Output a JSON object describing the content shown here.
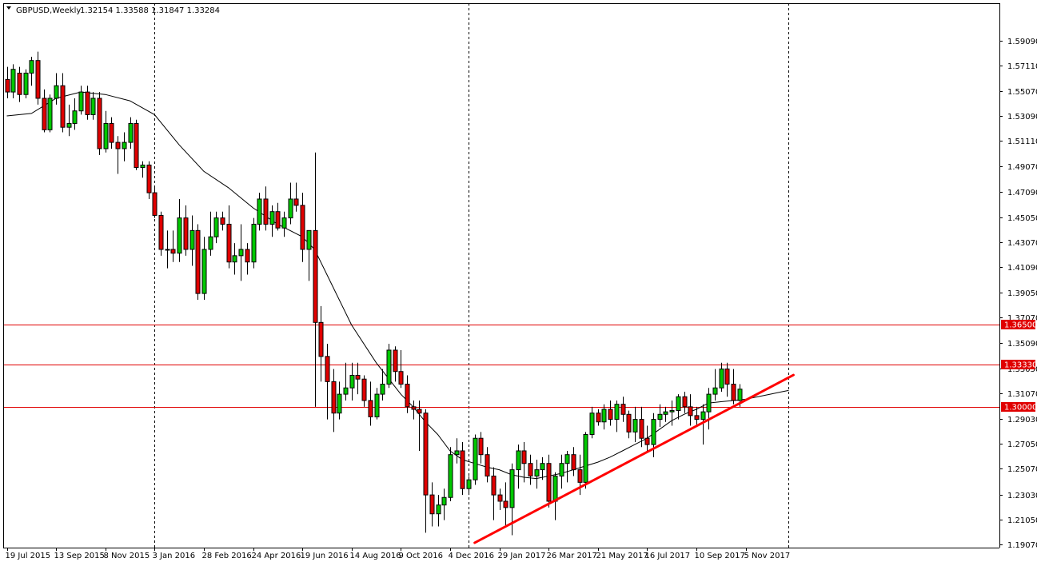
{
  "window": {
    "symbol_label": "GBPUSD,Weekly",
    "ohlc_label": "1.32154 1.33588 1.31847 1.33284"
  },
  "colors": {
    "bull": "#00c800",
    "bear": "#e00000",
    "wick": "#000000",
    "hline": "#e00000",
    "ma": "#000000",
    "trend": "#ff0000",
    "price_label_bg": "#e00000",
    "price_label_text": "#ffffff"
  },
  "chart_data": {
    "type": "candlestick",
    "title": "",
    "ylim": [
      1.1907,
      1.6091
    ],
    "y_ticks": [
      "1.59090",
      "1.57110",
      "1.55070",
      "1.53090",
      "1.51110",
      "1.49070",
      "1.47090",
      "1.45050",
      "1.43070",
      "1.41090",
      "1.39050",
      "1.37070",
      "1.35090",
      "1.33050",
      "1.31070",
      "1.29030",
      "1.27050",
      "1.25070",
      "1.23030",
      "1.21050",
      "1.19070"
    ],
    "x_ticks": [
      {
        "label": "19 Jul 2015",
        "index": 0
      },
      {
        "label": "13 Sep 2015",
        "index": 8
      },
      {
        "label": "8 Nov 2015",
        "index": 16
      },
      {
        "label": "3 Jan 2016",
        "index": 24
      },
      {
        "label": "28 Feb 2016",
        "index": 32
      },
      {
        "label": "24 Apr 2016",
        "index": 40
      },
      {
        "label": "19 Jun 2016",
        "index": 48
      },
      {
        "label": "14 Aug 2016",
        "index": 56
      },
      {
        "label": "9 Oct 2016",
        "index": 64
      },
      {
        "label": "4 Dec 2016",
        "index": 72
      },
      {
        "label": "29 Jan 2017",
        "index": 80
      },
      {
        "label": "26 Mar 2017",
        "index": 88
      },
      {
        "label": "21 May 2017",
        "index": 96
      },
      {
        "label": "16 Jul 2017",
        "index": 104
      },
      {
        "label": "10 Sep 2017",
        "index": 112
      },
      {
        "label": "5 Nov 2017",
        "index": 120
      }
    ],
    "period_separators": [
      24,
      75,
      127
    ],
    "horizontal_levels": [
      {
        "label": "1.36500",
        "value": 1.365
      },
      {
        "label": "1.33330",
        "value": 1.3333
      },
      {
        "label": "1.30000",
        "value": 1.3
      }
    ],
    "trendline": {
      "start": {
        "index": 76,
        "value": 1.192
      },
      "end": {
        "index": 127,
        "value": 1.324
      }
    },
    "candles": [
      [
        1.56,
        1.57,
        1.545,
        1.55
      ],
      [
        1.55,
        1.572,
        1.545,
        1.568
      ],
      [
        1.565,
        1.57,
        1.542,
        1.548
      ],
      [
        1.548,
        1.568,
        1.545,
        1.565
      ],
      [
        1.565,
        1.578,
        1.555,
        1.575
      ],
      [
        1.575,
        1.582,
        1.54,
        1.545
      ],
      [
        1.545,
        1.552,
        1.518,
        1.52
      ],
      [
        1.52,
        1.548,
        1.518,
        1.545
      ],
      [
        1.545,
        1.565,
        1.54,
        1.555
      ],
      [
        1.555,
        1.565,
        1.518,
        1.522
      ],
      [
        1.522,
        1.54,
        1.515,
        1.525
      ],
      [
        1.525,
        1.545,
        1.52,
        1.535
      ],
      [
        1.535,
        1.555,
        1.532,
        1.55
      ],
      [
        1.55,
        1.555,
        1.528,
        1.532
      ],
      [
        1.532,
        1.55,
        1.528,
        1.545
      ],
      [
        1.545,
        1.55,
        1.5,
        1.505
      ],
      [
        1.505,
        1.535,
        1.502,
        1.525
      ],
      [
        1.525,
        1.53,
        1.505,
        1.51
      ],
      [
        1.51,
        1.515,
        1.485,
        1.505
      ],
      [
        1.505,
        1.518,
        1.495,
        1.51
      ],
      [
        1.51,
        1.53,
        1.505,
        1.525
      ],
      [
        1.525,
        1.528,
        1.488,
        1.49
      ],
      [
        1.49,
        1.495,
        1.482,
        1.492
      ],
      [
        1.492,
        1.495,
        1.465,
        1.47
      ],
      [
        1.47,
        1.475,
        1.45,
        1.452
      ],
      [
        1.452,
        1.455,
        1.42,
        1.425
      ],
      [
        1.425,
        1.44,
        1.41,
        1.425
      ],
      [
        1.425,
        1.44,
        1.415,
        1.422
      ],
      [
        1.422,
        1.465,
        1.415,
        1.45
      ],
      [
        1.45,
        1.46,
        1.42,
        1.425
      ],
      [
        1.425,
        1.452,
        1.412,
        1.44
      ],
      [
        1.44,
        1.445,
        1.385,
        1.39
      ],
      [
        1.39,
        1.435,
        1.385,
        1.425
      ],
      [
        1.425,
        1.455,
        1.42,
        1.435
      ],
      [
        1.435,
        1.455,
        1.43,
        1.45
      ],
      [
        1.45,
        1.455,
        1.44,
        1.445
      ],
      [
        1.445,
        1.46,
        1.41,
        1.415
      ],
      [
        1.415,
        1.43,
        1.405,
        1.42
      ],
      [
        1.42,
        1.445,
        1.4,
        1.425
      ],
      [
        1.425,
        1.43,
        1.405,
        1.415
      ],
      [
        1.415,
        1.45,
        1.41,
        1.445
      ],
      [
        1.445,
        1.47,
        1.44,
        1.465
      ],
      [
        1.465,
        1.475,
        1.44,
        1.445
      ],
      [
        1.445,
        1.46,
        1.435,
        1.455
      ],
      [
        1.455,
        1.462,
        1.44,
        1.442
      ],
      [
        1.442,
        1.455,
        1.435,
        1.45
      ],
      [
        1.45,
        1.478,
        1.445,
        1.465
      ],
      [
        1.465,
        1.478,
        1.455,
        1.46
      ],
      [
        1.46,
        1.47,
        1.415,
        1.425
      ],
      [
        1.425,
        1.44,
        1.4,
        1.44
      ],
      [
        1.44,
        1.502,
        1.3,
        1.367
      ],
      [
        1.367,
        1.38,
        1.32,
        1.34
      ],
      [
        1.34,
        1.35,
        1.29,
        1.32
      ],
      [
        1.32,
        1.33,
        1.28,
        1.295
      ],
      [
        1.295,
        1.32,
        1.29,
        1.31
      ],
      [
        1.31,
        1.335,
        1.305,
        1.315
      ],
      [
        1.315,
        1.335,
        1.305,
        1.325
      ],
      [
        1.325,
        1.335,
        1.31,
        1.322
      ],
      [
        1.322,
        1.325,
        1.3,
        1.305
      ],
      [
        1.305,
        1.32,
        1.285,
        1.292
      ],
      [
        1.292,
        1.315,
        1.29,
        1.31
      ],
      [
        1.31,
        1.33,
        1.305,
        1.318
      ],
      [
        1.318,
        1.35,
        1.315,
        1.345
      ],
      [
        1.345,
        1.348,
        1.32,
        1.328
      ],
      [
        1.328,
        1.345,
        1.315,
        1.318
      ],
      [
        1.318,
        1.325,
        1.295,
        1.3
      ],
      [
        1.3,
        1.305,
        1.29,
        1.298
      ],
      [
        1.298,
        1.305,
        1.265,
        1.295
      ],
      [
        1.295,
        1.298,
        1.2,
        1.23
      ],
      [
        1.23,
        1.24,
        1.205,
        1.215
      ],
      [
        1.215,
        1.23,
        1.205,
        1.222
      ],
      [
        1.222,
        1.235,
        1.21,
        1.228
      ],
      [
        1.228,
        1.268,
        1.225,
        1.262
      ],
      [
        1.262,
        1.275,
        1.255,
        1.265
      ],
      [
        1.265,
        1.272,
        1.23,
        1.235
      ],
      [
        1.235,
        1.245,
        1.23,
        1.242
      ],
      [
        1.242,
        1.278,
        1.238,
        1.275
      ],
      [
        1.275,
        1.28,
        1.255,
        1.262
      ],
      [
        1.262,
        1.268,
        1.24,
        1.245
      ],
      [
        1.245,
        1.252,
        1.21,
        1.23
      ],
      [
        1.23,
        1.235,
        1.218,
        1.225
      ],
      [
        1.225,
        1.24,
        1.205,
        1.22
      ],
      [
        1.22,
        1.255,
        1.198,
        1.25
      ],
      [
        1.25,
        1.27,
        1.235,
        1.265
      ],
      [
        1.265,
        1.272,
        1.24,
        1.255
      ],
      [
        1.255,
        1.262,
        1.238,
        1.245
      ],
      [
        1.245,
        1.258,
        1.235,
        1.25
      ],
      [
        1.25,
        1.26,
        1.242,
        1.255
      ],
      [
        1.255,
        1.262,
        1.22,
        1.225
      ],
      [
        1.225,
        1.248,
        1.21,
        1.245
      ],
      [
        1.245,
        1.262,
        1.235,
        1.255
      ],
      [
        1.255,
        1.265,
        1.24,
        1.262
      ],
      [
        1.262,
        1.268,
        1.245,
        1.25
      ],
      [
        1.25,
        1.262,
        1.23,
        1.24
      ],
      [
        1.24,
        1.28,
        1.235,
        1.278
      ],
      [
        1.278,
        1.3,
        1.275,
        1.295
      ],
      [
        1.295,
        1.298,
        1.285,
        1.288
      ],
      [
        1.288,
        1.302,
        1.282,
        1.298
      ],
      [
        1.298,
        1.305,
        1.285,
        1.29
      ],
      [
        1.29,
        1.305,
        1.28,
        1.302
      ],
      [
        1.302,
        1.308,
        1.288,
        1.294
      ],
      [
        1.294,
        1.297,
        1.275,
        1.28
      ],
      [
        1.28,
        1.3,
        1.272,
        1.29
      ],
      [
        1.29,
        1.3,
        1.268,
        1.275
      ],
      [
        1.275,
        1.285,
        1.265,
        1.27
      ],
      [
        1.27,
        1.295,
        1.26,
        1.29
      ],
      [
        1.29,
        1.302,
        1.284,
        1.294
      ],
      [
        1.294,
        1.3,
        1.288,
        1.296
      ],
      [
        1.296,
        1.305,
        1.285,
        1.297
      ],
      [
        1.297,
        1.31,
        1.29,
        1.308
      ],
      [
        1.308,
        1.312,
        1.295,
        1.3
      ],
      [
        1.3,
        1.31,
        1.285,
        1.293
      ],
      [
        1.293,
        1.3,
        1.285,
        1.29
      ],
      [
        1.29,
        1.302,
        1.27,
        1.296
      ],
      [
        1.296,
        1.315,
        1.282,
        1.31
      ],
      [
        1.31,
        1.33,
        1.305,
        1.315
      ],
      [
        1.315,
        1.335,
        1.312,
        1.33
      ],
      [
        1.33,
        1.335,
        1.308,
        1.318
      ],
      [
        1.318,
        1.33,
        1.302,
        1.305
      ],
      [
        1.305,
        1.318,
        1.3,
        1.314
      ]
    ],
    "moving_average": {
      "period_label": "",
      "points": [
        [
          0,
          1.531
        ],
        [
          4,
          1.533
        ],
        [
          8,
          1.545
        ],
        [
          12,
          1.55
        ],
        [
          16,
          1.548
        ],
        [
          20,
          1.543
        ],
        [
          24,
          1.532
        ],
        [
          28,
          1.508
        ],
        [
          32,
          1.487
        ],
        [
          36,
          1.474
        ],
        [
          40,
          1.458
        ],
        [
          44,
          1.445
        ],
        [
          48,
          1.435
        ],
        [
          50,
          1.425
        ],
        [
          52,
          1.405
        ],
        [
          56,
          1.365
        ],
        [
          60,
          1.335
        ],
        [
          64,
          1.31
        ],
        [
          66,
          1.3
        ],
        [
          68,
          1.288
        ],
        [
          70,
          1.278
        ],
        [
          72,
          1.265
        ],
        [
          74,
          1.258
        ],
        [
          76,
          1.255
        ],
        [
          78,
          1.252
        ],
        [
          80,
          1.25
        ],
        [
          82,
          1.246
        ],
        [
          84,
          1.244
        ],
        [
          86,
          1.243
        ],
        [
          88,
          1.245
        ],
        [
          90,
          1.247
        ],
        [
          92,
          1.25
        ],
        [
          94,
          1.253
        ],
        [
          96,
          1.256
        ],
        [
          98,
          1.26
        ],
        [
          100,
          1.265
        ],
        [
          102,
          1.27
        ],
        [
          104,
          1.275
        ],
        [
          106,
          1.282
        ],
        [
          108,
          1.289
        ],
        [
          110,
          1.294
        ],
        [
          112,
          1.298
        ],
        [
          114,
          1.303
        ],
        [
          116,
          1.304
        ],
        [
          118,
          1.305
        ],
        [
          120,
          1.306
        ],
        [
          122,
          1.308
        ],
        [
          124,
          1.31
        ],
        [
          126,
          1.312
        ],
        [
          127,
          1.313
        ]
      ]
    }
  }
}
